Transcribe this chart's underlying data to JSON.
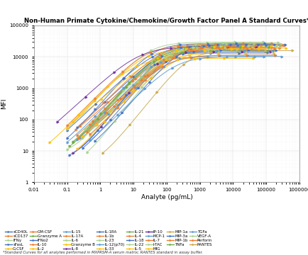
{
  "title": "Non-Human Primate Cytokine/Chemokine/Growth Factor Panel A Standard Curves*",
  "xlabel": "Analyte (pg/mL)",
  "ylabel": "MFI",
  "footnote": "*Standard Curves for all analytes performed in MXPRSM-A serum matrix; RANTES standard in assay buffer.",
  "xmin": 0.01,
  "xmax": 1000000,
  "ymin": 1,
  "ymax": 100000,
  "curves": [
    {
      "name": "sCD40L",
      "color": "#4472C4",
      "ec50": 50,
      "xmin": 0.1,
      "xmax": 100000
    },
    {
      "name": "sCD137",
      "color": "#ED7D31",
      "ec50": 80,
      "xmin": 0.2,
      "xmax": 150000
    },
    {
      "name": "IFNy",
      "color": "#A9D18E",
      "ec50": 30,
      "xmin": 0.1,
      "xmax": 80000
    },
    {
      "name": "sFasL",
      "color": "#4472C4",
      "ec50": 120,
      "xmin": 0.3,
      "xmax": 200000
    },
    {
      "name": "G-CSF",
      "color": "#FFC000",
      "ec50": 20,
      "xmin": 0.1,
      "xmax": 60000
    },
    {
      "name": "GM-CSF",
      "color": "#ED7D31",
      "ec50": 200,
      "xmin": 0.5,
      "xmax": 300000
    },
    {
      "name": "Granzyme A",
      "color": "#70AD47",
      "ec50": 60,
      "xmin": 0.15,
      "xmax": 120000
    },
    {
      "name": "IFNo2",
      "color": "#4472C4",
      "ec50": 40,
      "xmin": 0.1,
      "xmax": 90000
    },
    {
      "name": "IL-10",
      "color": "#ED7D31",
      "ec50": 25,
      "xmin": 0.1,
      "xmax": 70000
    },
    {
      "name": "IL-2",
      "color": "#FFC000",
      "ec50": 90,
      "xmin": 0.2,
      "xmax": 170000
    },
    {
      "name": "IL-15",
      "color": "#5B9BD5",
      "ec50": 35,
      "xmin": 0.1,
      "xmax": 85000
    },
    {
      "name": "IL-17A",
      "color": "#ED7D31",
      "ec50": 150,
      "xmin": 0.4,
      "xmax": 250000
    },
    {
      "name": "IL-6",
      "color": "#A9D18E",
      "ec50": 45,
      "xmin": 0.1,
      "xmax": 95000
    },
    {
      "name": "Granzyme B",
      "color": "#FFC000",
      "ec50": 300,
      "xmin": 0.8,
      "xmax": 400000
    },
    {
      "name": "IL-8",
      "color": "#7030A0",
      "ec50": 70,
      "xmin": 0.15,
      "xmax": 130000
    },
    {
      "name": "IL-1RA",
      "color": "#4472C4",
      "ec50": 55,
      "xmin": 0.12,
      "xmax": 110000
    },
    {
      "name": "IL-1b",
      "color": "#ED7D31",
      "ec50": 110,
      "xmin": 0.25,
      "xmax": 180000
    },
    {
      "name": "IL-23",
      "color": "#A9D18E",
      "ec50": 180,
      "xmin": 0.5,
      "xmax": 280000
    },
    {
      "name": "IL-12(p70)",
      "color": "#5B9BD5",
      "ec50": 85,
      "xmin": 0.2,
      "xmax": 160000
    },
    {
      "name": "IL-33",
      "color": "#FFC000",
      "ec50": 130,
      "xmin": 0.3,
      "xmax": 210000
    },
    {
      "name": "IL-21",
      "color": "#70AD47",
      "ec50": 65,
      "xmin": 0.15,
      "xmax": 125000
    },
    {
      "name": "IL-4",
      "color": "#ED7D31",
      "ec50": 240,
      "xmin": 0.6,
      "xmax": 350000
    },
    {
      "name": "IL-18",
      "color": "#4472C4",
      "ec50": 95,
      "xmin": 0.2,
      "xmax": 175000
    },
    {
      "name": "IL-22",
      "color": "#A9D18E",
      "ec50": 160,
      "xmin": 0.4,
      "xmax": 260000
    },
    {
      "name": "IL-5",
      "color": "#FFC000",
      "ec50": 75,
      "xmin": 0.15,
      "xmax": 140000
    },
    {
      "name": "IP-10",
      "color": "#7030A0",
      "ec50": 15,
      "xmin": 0.05,
      "xmax": 50000
    },
    {
      "name": "MCP-1",
      "color": "#5B9BD5",
      "ec50": 105,
      "xmin": 0.25,
      "xmax": 190000
    },
    {
      "name": "IL-7",
      "color": "#ED7D31",
      "ec50": 220,
      "xmin": 0.5,
      "xmax": 320000
    },
    {
      "name": "I-TAC",
      "color": "#A9D18E",
      "ec50": 140,
      "xmin": 0.35,
      "xmax": 230000
    },
    {
      "name": "MIG",
      "color": "#FFC000",
      "ec50": 10,
      "xmin": 0.03,
      "xmax": 40000
    },
    {
      "name": "MIP-1a",
      "color": "#C9A84C",
      "ec50": 170,
      "xmin": 0.45,
      "xmax": 270000
    },
    {
      "name": "MIP-3a",
      "color": "#4472C4",
      "ec50": 260,
      "xmin": 0.7,
      "xmax": 370000
    },
    {
      "name": "MIP-1b",
      "color": "#ED7D31",
      "ec50": 100,
      "xmin": 0.22,
      "xmax": 185000
    },
    {
      "name": "TNFa",
      "color": "#70AD47",
      "ec50": 50,
      "xmin": 0.12,
      "xmax": 105000
    },
    {
      "name": "TGFa",
      "color": "#5B9BD5",
      "ec50": 190,
      "xmin": 0.5,
      "xmax": 295000
    },
    {
      "name": "VEGF-A",
      "color": "#A9D18E",
      "ec50": 115,
      "xmin": 0.28,
      "xmax": 195000
    },
    {
      "name": "Perforin",
      "color": "#ED7D31",
      "ec50": 78,
      "xmin": 0.18,
      "xmax": 145000
    },
    {
      "name": "RANTES",
      "color": "#C9A84C",
      "ec50": 500,
      "xmin": 1.2,
      "xmax": 600000
    }
  ],
  "legend_rows": [
    [
      "sCD40L",
      "sCD137",
      "IFNy",
      "sFasL",
      "G-CSF",
      "GM-CSF",
      "Granzyme A",
      "IFNo2"
    ],
    [
      "IL-10",
      "IL-2",
      "IL-15",
      "IL-17A",
      "IL-6",
      "Granzyme B",
      "IL-8",
      "IL-1RA"
    ],
    [
      "IL-1b",
      "IL-23",
      "IL-12(p70)",
      "IL-33",
      "IL-21",
      "IL-4",
      "IL-18",
      "IL-22"
    ],
    [
      "IL-5",
      "IP-10",
      "MCP-1",
      "IL-7",
      "I-TAC",
      "MIG",
      "MIP-1a",
      "MIP-3a"
    ],
    [
      "MIP-1b",
      "TNFa",
      "TGFa",
      "VEGF-A",
      "Perforin",
      "RANTES"
    ]
  ]
}
